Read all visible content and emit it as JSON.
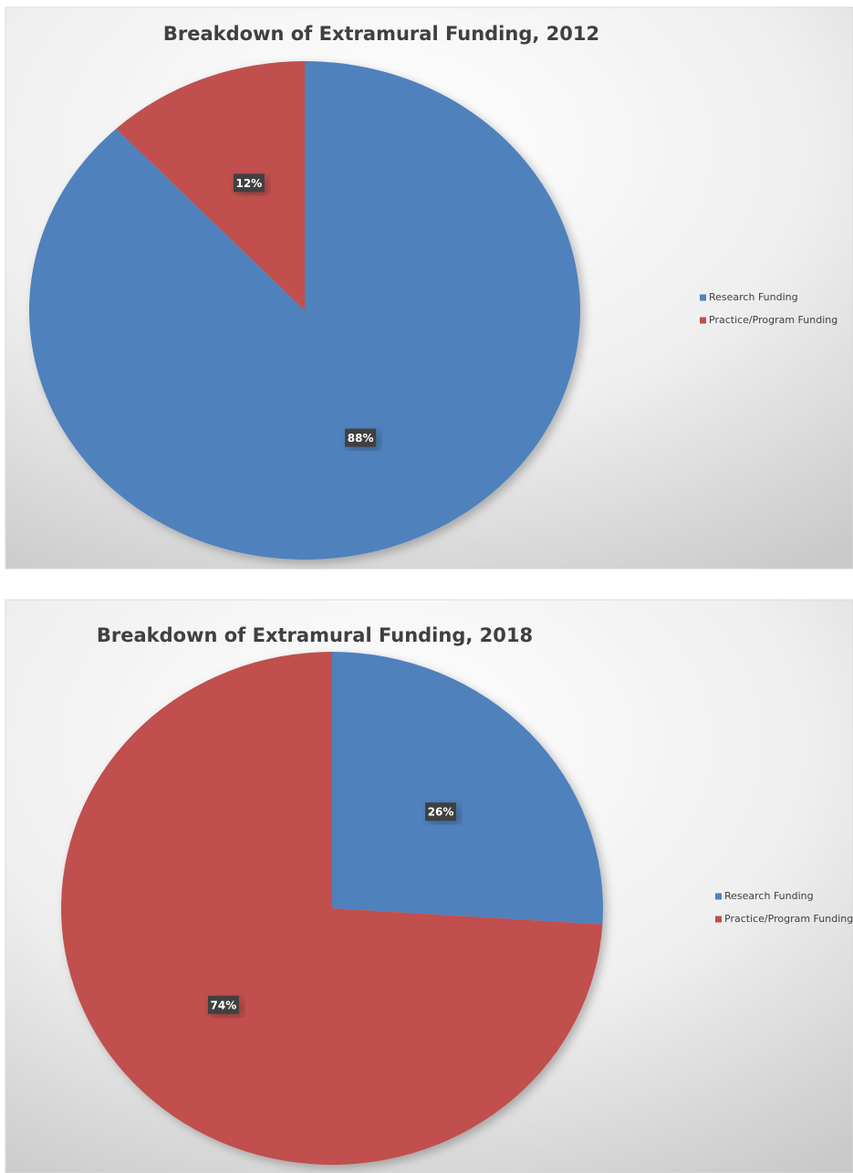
{
  "chart_data": [
    {
      "type": "pie",
      "title": "Breakdown of Extramural Funding, 2012",
      "categories": [
        "Research Funding",
        "Practice/Program Funding"
      ],
      "values": [
        88,
        12
      ],
      "value_labels": [
        "88%",
        "12%"
      ],
      "colors": [
        "#4f81bd",
        "#c0504d"
      ],
      "legend": "right"
    },
    {
      "type": "pie",
      "title": "Breakdown of Extramural Funding, 2018",
      "categories": [
        "Research Funding",
        "Practice/Program Funding"
      ],
      "values": [
        26,
        74
      ],
      "value_labels": [
        "26%",
        "74%"
      ],
      "colors": [
        "#4f81bd",
        "#c0504d"
      ],
      "legend": "right"
    }
  ]
}
